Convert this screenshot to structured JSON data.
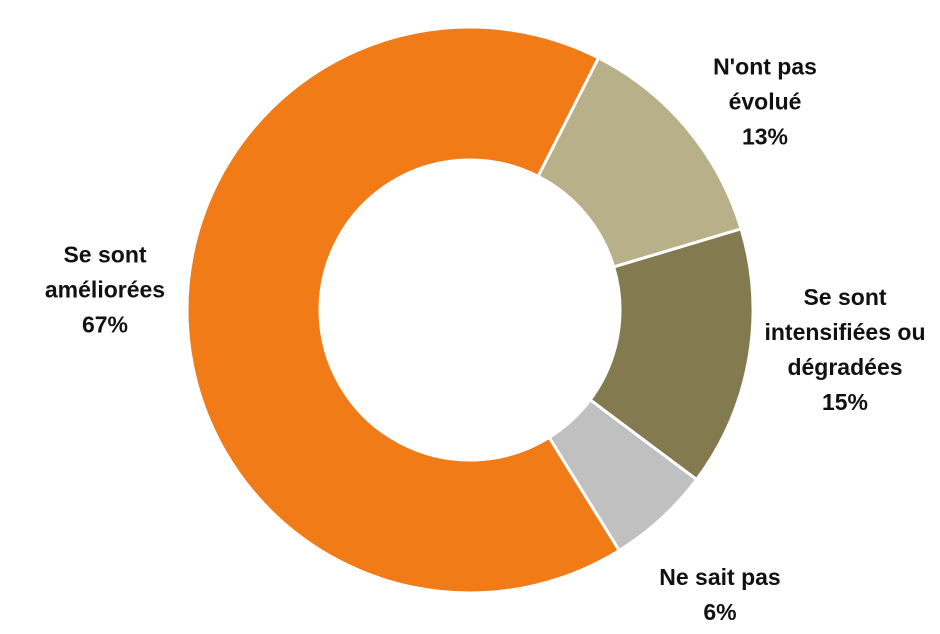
{
  "chart_data": {
    "type": "donut",
    "categories": [
      "N'ont pas évolué",
      "Se sont intensifiées ou dégradées",
      "Ne sait pas",
      "Se sont améliorées"
    ],
    "values": [
      13,
      15,
      6,
      67
    ],
    "value_labels": [
      "13%",
      "15%",
      "6%",
      "67%"
    ],
    "colors": [
      "#b8b088",
      "#837a50",
      "#c0c0c0",
      "#f07b17"
    ]
  }
}
